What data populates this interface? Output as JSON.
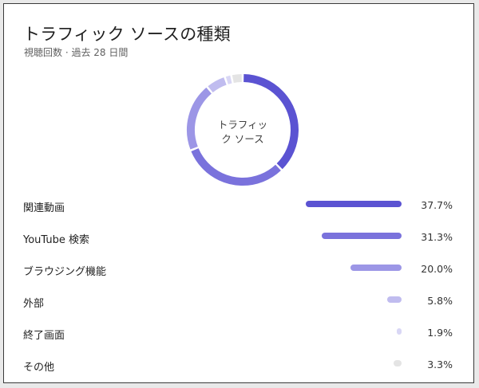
{
  "card": {
    "title": "トラフィック ソースの種類",
    "subtitle": "視聴回数 · 過去 28 日間"
  },
  "donut": {
    "center_label_line1": "トラフィッ",
    "center_label_line2": "ク ソース"
  },
  "chart_data": {
    "type": "pie",
    "categories": [
      "関連動画",
      "YouTube 検索",
      "ブラウジング機能",
      "外部",
      "終了画面",
      "その他"
    ],
    "values": [
      37.7,
      31.3,
      20.0,
      5.8,
      1.9,
      3.3
    ],
    "value_labels": [
      "37.7%",
      "31.3%",
      "20.0%",
      "5.8%",
      "1.9%",
      "3.3%"
    ],
    "colors": [
      "#5b53d2",
      "#7a72dc",
      "#9c96e6",
      "#c0bcef",
      "#d9d7f5",
      "#e4e4e4"
    ],
    "title": "トラフィック ソースの種類",
    "subtitle": "視聴回数 · 過去 28 日間"
  }
}
